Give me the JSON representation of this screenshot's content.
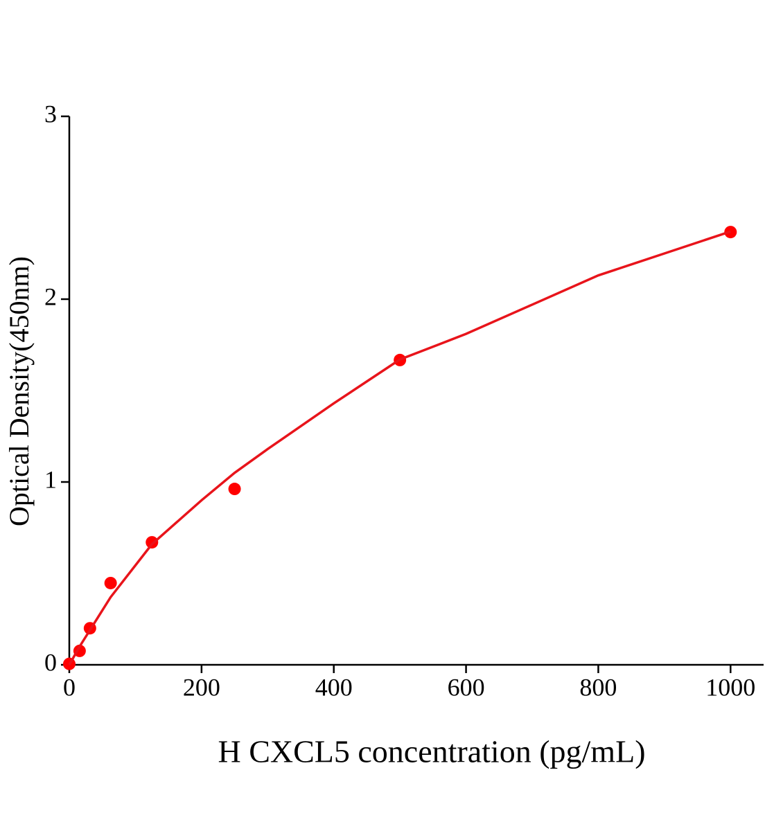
{
  "chart_data": {
    "type": "scatter",
    "xlabel": "H CXCL5 concentration (pg/mL)",
    "ylabel": "Optical Density(450nm)",
    "series": [
      {
        "type": "scatter",
        "color": "#ff0000",
        "x": [
          0,
          15.6,
          31.25,
          62.5,
          125,
          250,
          500,
          1000
        ],
        "values": [
          0.005,
          0.076,
          0.2,
          0.447,
          0.67,
          0.962,
          1.667,
          2.367
        ]
      },
      {
        "type": "line",
        "color": "#e8141b",
        "x": [
          0,
          15.6,
          31.25,
          62.5,
          125,
          200,
          250,
          300,
          400,
          500,
          600,
          700,
          800,
          900,
          1000
        ],
        "values": [
          0,
          0.1,
          0.19,
          0.37,
          0.66,
          0.9,
          1.05,
          1.18,
          1.43,
          1.67,
          1.81,
          1.97,
          2.13,
          2.25,
          2.37
        ]
      }
    ],
    "xlim": [
      0,
      1050
    ],
    "xticks": [
      0,
      200,
      400,
      600,
      800,
      1000
    ],
    "ylim": [
      0,
      3
    ],
    "yticks": [
      0,
      1,
      2,
      3
    ]
  }
}
